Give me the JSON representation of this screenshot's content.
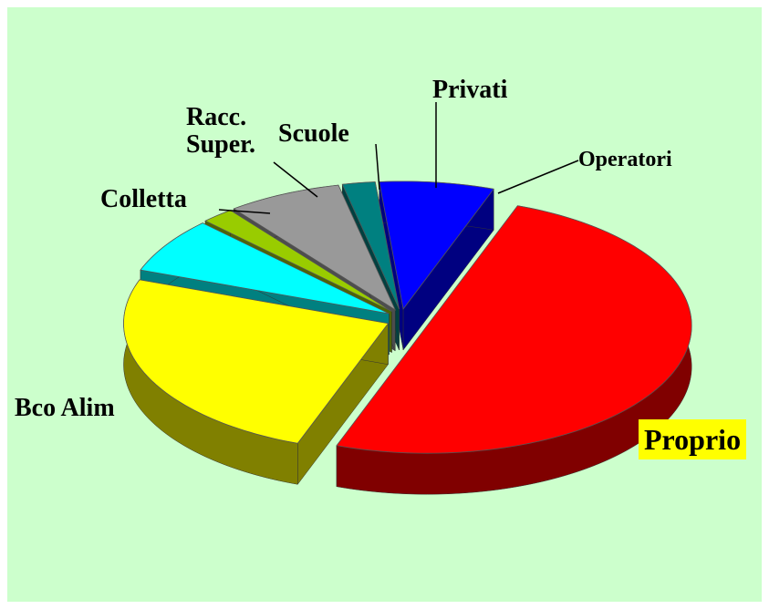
{
  "chart_data": {
    "type": "pie",
    "categories": [
      "Proprio",
      "Bco Alim",
      "Colletta",
      "Racc. Super.",
      "Scuole",
      "Privati",
      "Operatori"
    ],
    "values": [
      50,
      25,
      7,
      2,
      7,
      2,
      7
    ],
    "colors": [
      "#ff0000",
      "#ffff00",
      "#00ffff",
      "#99cc00",
      "#999999",
      "#008080",
      "#0000ff"
    ]
  }
}
